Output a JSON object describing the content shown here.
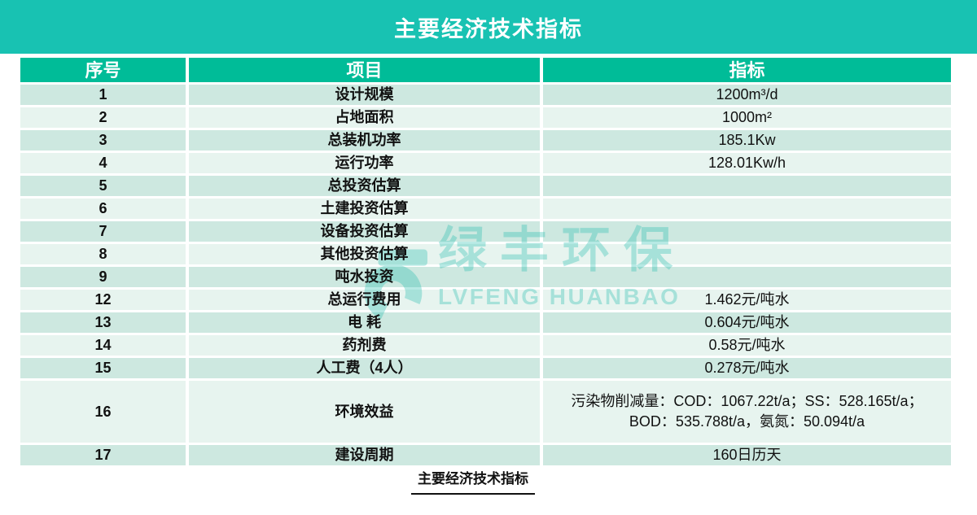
{
  "banner": {
    "title": "主要经济技术指标"
  },
  "table": {
    "headers": [
      {
        "label": "序号"
      },
      {
        "label": "项目"
      },
      {
        "label": "指标"
      }
    ],
    "rows": [
      {
        "no": "1",
        "item": "设计规模",
        "value": "1200m³/d"
      },
      {
        "no": "2",
        "item": "占地面积",
        "value": "1000m²"
      },
      {
        "no": "3",
        "item": "总装机功率",
        "value": "185.1Kw"
      },
      {
        "no": "4",
        "item": "运行功率",
        "value": "128.01Kw/h"
      },
      {
        "no": "5",
        "item": "总投资估算",
        "value": ""
      },
      {
        "no": "6",
        "item": "土建投资估算",
        "value": ""
      },
      {
        "no": "7",
        "item": "设备投资估算",
        "value": ""
      },
      {
        "no": "8",
        "item": "其他投资估算",
        "value": ""
      },
      {
        "no": "9",
        "item": "吨水投资",
        "value": ""
      },
      {
        "no": "12",
        "item": "总运行费用",
        "value": "1.462元/吨水"
      },
      {
        "no": "13",
        "item": "电 耗",
        "value": "0.604元/吨水"
      },
      {
        "no": "14",
        "item": "药剂费",
        "value": "0.58元/吨水"
      },
      {
        "no": "15",
        "item": "人工费（4人）",
        "value": "0.278元/吨水"
      },
      {
        "no": "16",
        "item": "环境效益",
        "value": "污染物削减量：COD：1067.22t/a；SS：528.165t/a；BOD：535.788t/a，氨氮：50.094t/a"
      },
      {
        "no": "17",
        "item": "建设周期",
        "value": "160日历天"
      }
    ]
  },
  "watermark": {
    "cn": "绿丰环保",
    "en": "LVFENG HUANBAO",
    "logo_icon": "lvfeng-leaf-logo"
  },
  "caption": {
    "text": "主要经济技术指标"
  },
  "colors": {
    "banner": "#18c2b2",
    "table_header": "#00bc98",
    "row_dark": "#cde8e0",
    "row_light": "#e7f4ef",
    "watermark": "#1fbcac"
  }
}
